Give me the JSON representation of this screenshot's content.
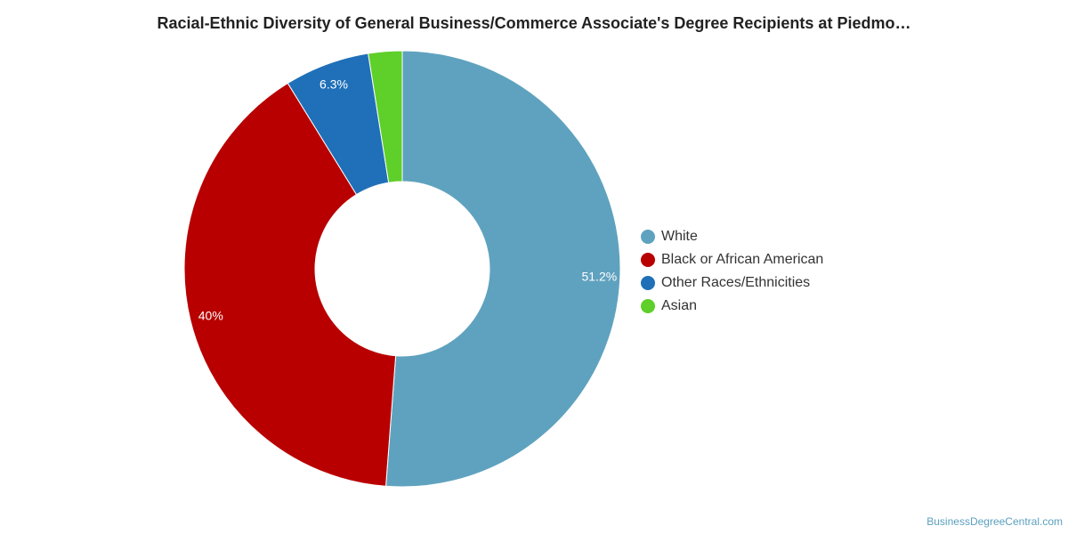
{
  "chart_data": {
    "type": "pie",
    "title": "Racial-Ethnic Diversity of General Business/Commerce Associate's Degree Recipients at Piedmo…",
    "variant": "donut",
    "legend_position": "right",
    "categories": [
      "White",
      "Black or African American",
      "Other Races/Ethnicities",
      "Asian"
    ],
    "values": [
      51.2,
      40.0,
      6.3,
      2.5
    ],
    "data_labels": [
      "51.2%",
      "40%",
      "6.3%",
      ""
    ],
    "colors": [
      "#5fa2bf",
      "#b80000",
      "#1f70b8",
      "#5fcf2a"
    ]
  },
  "watermark": "BusinessDegreeCentral.com"
}
